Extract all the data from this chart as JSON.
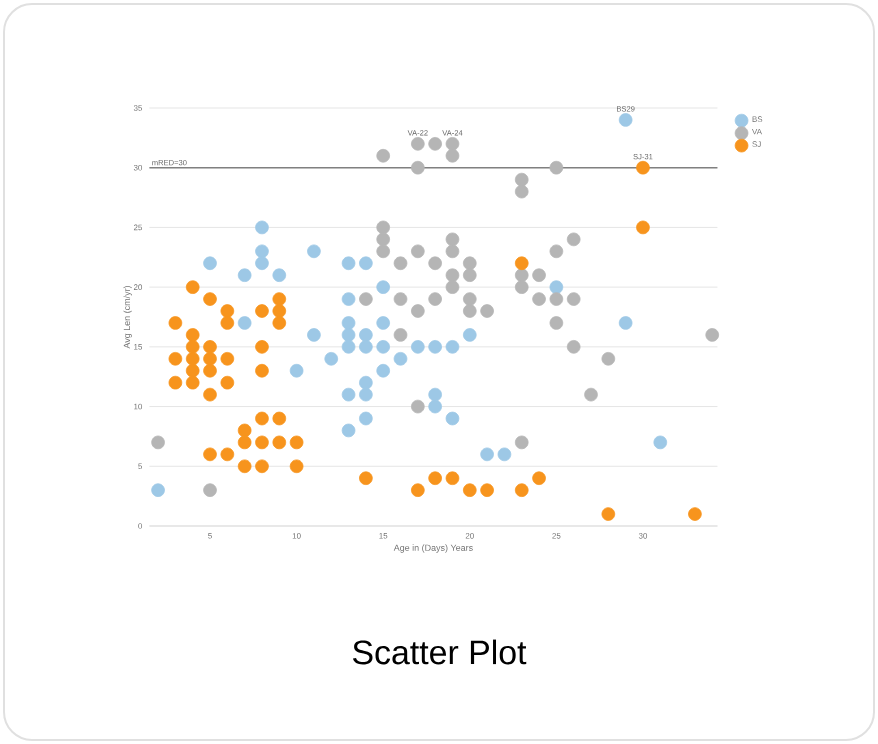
{
  "chart_data": {
    "type": "scatter",
    "title": "Scatter Plot",
    "xlabel": "Age in (Days) Years",
    "ylabel": "Avg Len (cm/yr)",
    "xlim": [
      1.5,
      34.3
    ],
    "ylim": [
      0,
      35
    ],
    "xticks": [
      5,
      10,
      15,
      20,
      25,
      30
    ],
    "yticks": [
      0,
      5,
      10,
      15,
      20,
      25,
      30,
      35
    ],
    "grid": "y",
    "legend": "top right",
    "ref_lines": [
      {
        "axis": "y",
        "value": 30,
        "label": "mRED=30",
        "color": "#808080"
      }
    ],
    "annotations": [
      {
        "text": "VA-22",
        "x": 17,
        "y": 32
      },
      {
        "text": "VA-24",
        "x": 19,
        "y": 32
      },
      {
        "text": "BS29",
        "x": 29,
        "y": 34
      },
      {
        "text": "SJ-31",
        "x": 30,
        "y": 30
      }
    ],
    "series": [
      {
        "name": "BS",
        "color": "#9dc8e6",
        "x": [
          2,
          5,
          7,
          7,
          8,
          8,
          8,
          9,
          10,
          11,
          11,
          12,
          13,
          13,
          13,
          13,
          13,
          13,
          13,
          14,
          14,
          14,
          14,
          14,
          14,
          15,
          15,
          15,
          15,
          16,
          17,
          18,
          18,
          18,
          19,
          19,
          20,
          21,
          22,
          25,
          29,
          29,
          31
        ],
        "values": [
          3,
          22,
          17,
          21,
          25,
          23,
          22,
          21,
          13,
          23,
          16,
          14,
          22,
          19,
          17,
          16,
          15,
          11,
          8,
          22,
          16,
          15,
          12,
          11,
          9,
          20,
          17,
          15,
          13,
          14,
          15,
          15,
          11,
          10,
          15,
          9,
          16,
          6,
          6,
          20,
          17,
          34,
          7
        ]
      },
      {
        "name": "VA",
        "color": "#b5b5b5",
        "x": [
          2,
          5,
          14,
          15,
          15,
          15,
          15,
          16,
          16,
          16,
          17,
          17,
          17,
          17,
          17,
          18,
          18,
          18,
          19,
          19,
          19,
          19,
          19,
          19,
          20,
          20,
          20,
          20,
          21,
          23,
          23,
          23,
          23,
          23,
          24,
          24,
          25,
          25,
          25,
          25,
          26,
          26,
          26,
          27,
          28,
          34
        ],
        "values": [
          7,
          3,
          19,
          31,
          25,
          24,
          23,
          22,
          19,
          16,
          32,
          30,
          23,
          18,
          10,
          32,
          22,
          19,
          32,
          31,
          24,
          23,
          21,
          20,
          22,
          21,
          19,
          18,
          18,
          29,
          28,
          21,
          20,
          7,
          21,
          19,
          30,
          23,
          19,
          17,
          24,
          19,
          15,
          11,
          14,
          16
        ]
      },
      {
        "name": "SJ",
        "color": "#f7941d",
        "x": [
          3,
          3,
          3,
          4,
          4,
          4,
          4,
          4,
          4,
          5,
          5,
          5,
          5,
          5,
          5,
          6,
          6,
          6,
          6,
          6,
          7,
          7,
          7,
          8,
          8,
          8,
          8,
          8,
          8,
          9,
          9,
          9,
          9,
          9,
          10,
          10,
          14,
          17,
          18,
          19,
          20,
          21,
          23,
          23,
          24,
          28,
          30,
          30,
          33
        ],
        "values": [
          17,
          14,
          12,
          20,
          16,
          15,
          14,
          13,
          12,
          19,
          15,
          14,
          13,
          11,
          6,
          18,
          17,
          14,
          12,
          6,
          8,
          7,
          5,
          18,
          15,
          13,
          9,
          7,
          5,
          19,
          18,
          17,
          9,
          7,
          7,
          5,
          4,
          3,
          4,
          4,
          3,
          3,
          3,
          22,
          4,
          1,
          30,
          25,
          1
        ]
      }
    ]
  }
}
